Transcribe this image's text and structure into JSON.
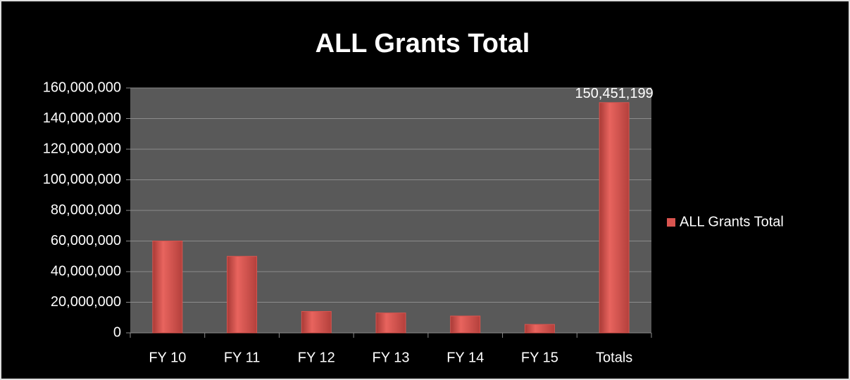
{
  "chart_data": {
    "type": "bar",
    "title": "ALL Grants Total",
    "categories": [
      "FY 10",
      "FY 11",
      "FY 12",
      "FY 13",
      "FY 14",
      "FY 15",
      "Totals"
    ],
    "series": [
      {
        "name": "ALL Grants Total",
        "color": "#d9544f",
        "values": [
          60000000,
          50000000,
          14000000,
          13000000,
          11000000,
          5500000,
          150451199
        ],
        "value_labels": [
          null,
          null,
          null,
          null,
          null,
          null,
          "150,451,199"
        ]
      }
    ],
    "ylim": [
      0,
      160000000
    ],
    "yticks": [
      0,
      {
        "value": 20000000,
        "label": "20,000,000"
      },
      {
        "value": 40000000,
        "label": "40,000,000"
      },
      {
        "value": 60000000,
        "label": "60,000,000"
      },
      {
        "value": 80000000,
        "label": "80,000,000"
      },
      {
        "value": 100000000,
        "label": "100,000,000"
      },
      {
        "value": 120000000,
        "label": "120,000,000"
      },
      {
        "value": 140000000,
        "label": "140,000,000"
      },
      {
        "value": 160000000,
        "label": "160,000,000"
      }
    ],
    "grid": true,
    "legend": "right"
  }
}
